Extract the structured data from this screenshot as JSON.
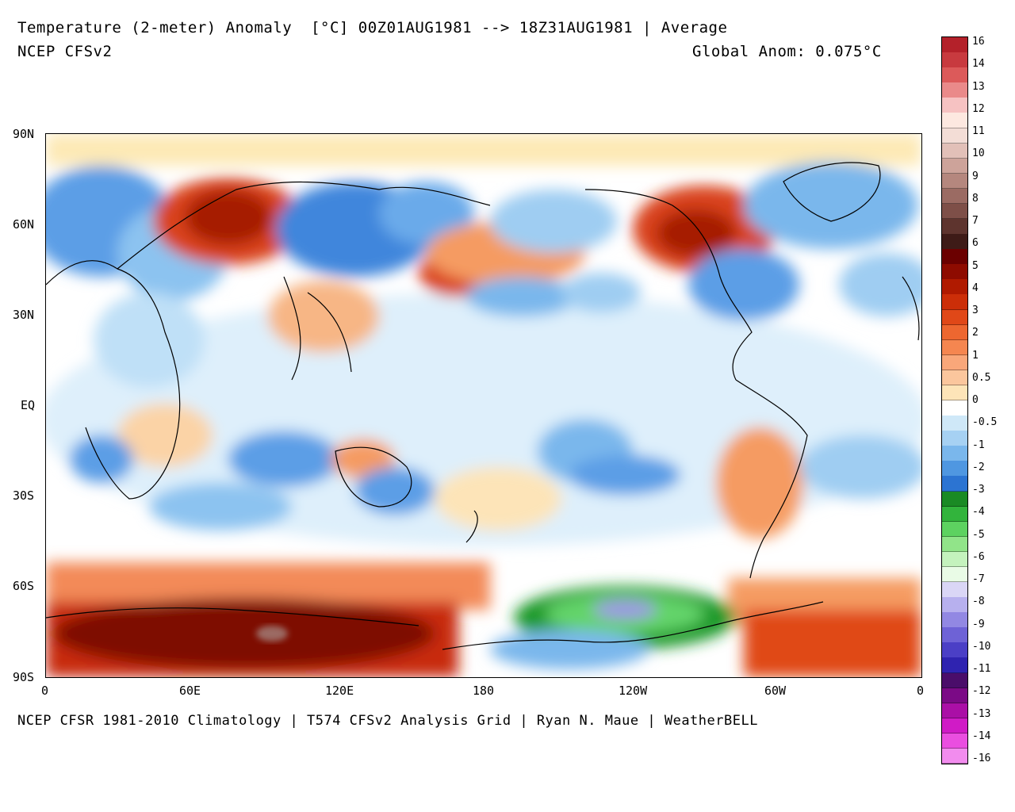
{
  "header": {
    "title": "Temperature (2-meter) Anomaly  [°C] 00Z01AUG1981 --> 18Z31AUG1981 | Average",
    "model": "NCEP CFSv2",
    "global_anom": "Global Anom: 0.075°C"
  },
  "footer": {
    "credit": "NCEP CFSR 1981-2010 Climatology | T574 CFSv2 Analysis Grid | Ryan N. Maue | WeatherBELL"
  },
  "map": {
    "lat_labels": [
      "90N",
      "60N",
      "30N",
      "EQ",
      "30S",
      "60S",
      "90S"
    ],
    "lon_labels": [
      "0",
      "60E",
      "120E",
      "180",
      "120W",
      "60W",
      "0"
    ],
    "lat_values": [
      90,
      60,
      30,
      0,
      -30,
      -60,
      -90
    ],
    "lon_values": [
      0,
      60,
      120,
      180,
      240,
      300,
      360
    ]
  },
  "colorbar": {
    "labels": [
      "16",
      "14",
      "13",
      "12",
      "11",
      "10",
      "9",
      "8",
      "7",
      "6",
      "5",
      "4",
      "3",
      "2",
      "1",
      "0.5",
      "0",
      "-0.5",
      "-1",
      "-2",
      "-3",
      "-4",
      "-5",
      "-6",
      "-7",
      "-8",
      "-9",
      "-10",
      "-11",
      "-12",
      "-13",
      "-14",
      "-16"
    ],
    "colors": [
      "#b4212a",
      "#c83a3f",
      "#dc5a5a",
      "#ea8a8a",
      "#f6c2c2",
      "#fde8e0",
      "#f3ddd6",
      "#e2c0b8",
      "#cda39a",
      "#b5877e",
      "#9b6b63",
      "#7e4f48",
      "#5e342e",
      "#3e1b17",
      "#6b0000",
      "#8e0b00",
      "#b01a00",
      "#cc2e08",
      "#e04818",
      "#ed6730",
      "#f58650",
      "#f9a77a",
      "#fbc69d",
      "#fde4b8",
      "#ffffff",
      "#cfe8f8",
      "#a6d1f3",
      "#7ab7ec",
      "#4f97e1",
      "#2c74d2",
      "#1a8a24",
      "#32b43c",
      "#5dd260",
      "#91e489",
      "#c4f2bd",
      "#e9fbe6",
      "#dad6f6",
      "#b7b0ee",
      "#9288e3",
      "#6e62d6",
      "#4b3fc6",
      "#2f23b0",
      "#4a0d6a",
      "#7b0a86",
      "#aa0fa6",
      "#d01bc6",
      "#ea4ee0",
      "#f28cee"
    ]
  },
  "chart_data": {
    "type": "heatmap",
    "title": "Temperature (2-meter) Anomaly  [°C] 00Z01AUG1981 --> 18Z31AUG1981 | Average",
    "units": "°C",
    "global_mean_anomaly": 0.075,
    "x_ticks": [
      "0",
      "60E",
      "120E",
      "180",
      "120W",
      "60W",
      "0"
    ],
    "y_ticks": [
      "90N",
      "60N",
      "30N",
      "EQ",
      "30S",
      "60S",
      "90S"
    ],
    "xlim": [
      0,
      360
    ],
    "ylim": [
      -90,
      90
    ],
    "scale_levels": [
      16,
      14,
      13,
      12,
      11,
      10,
      9,
      8,
      7,
      6,
      5,
      4,
      3,
      2,
      1,
      0.5,
      0,
      -0.5,
      -1,
      -2,
      -3,
      -4,
      -5,
      -6,
      -7,
      -8,
      -9,
      -10,
      -11,
      -12,
      -13,
      -14,
      -16
    ],
    "grid": false
  }
}
